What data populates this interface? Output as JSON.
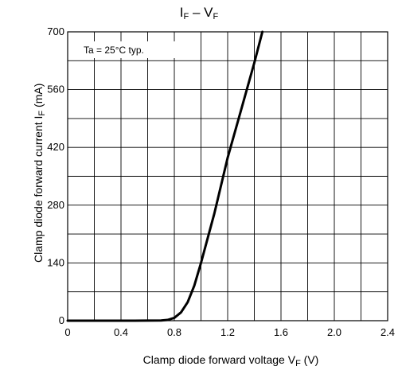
{
  "chart_data": {
    "type": "line",
    "title": {
      "main": "I",
      "main_sub": "F",
      "sep": " – V",
      "sep_sub": "F"
    },
    "xlabel": {
      "text": "Clamp diode forward voltage   V",
      "sub": "F",
      "unit": "   (V)"
    },
    "ylabel": {
      "text": "Clamp diode forward current   I",
      "sub": "F",
      "unit": "   (mA)"
    },
    "annotation": "Ta = 25°C typ.",
    "xlim": [
      0,
      2.4
    ],
    "ylim": [
      0,
      700
    ],
    "x_tick_labels": [
      "0",
      "0.4",
      "0.8",
      "1.2",
      "1.6",
      "2.0",
      "2.4"
    ],
    "y_tick_labels": [
      "0",
      "140",
      "280",
      "420",
      "560",
      "700"
    ],
    "grid": true,
    "series": [
      {
        "points": [
          [
            0,
            0
          ],
          [
            0.5,
            0
          ],
          [
            0.7,
            0.5
          ],
          [
            0.75,
            2
          ],
          [
            0.8,
            7
          ],
          [
            0.85,
            20
          ],
          [
            0.9,
            45
          ],
          [
            0.95,
            85
          ],
          [
            1.0,
            140
          ],
          [
            1.1,
            260
          ],
          [
            1.2,
            395
          ],
          [
            1.3,
            510
          ],
          [
            1.4,
            625
          ],
          [
            1.46,
            700
          ]
        ]
      }
    ]
  }
}
